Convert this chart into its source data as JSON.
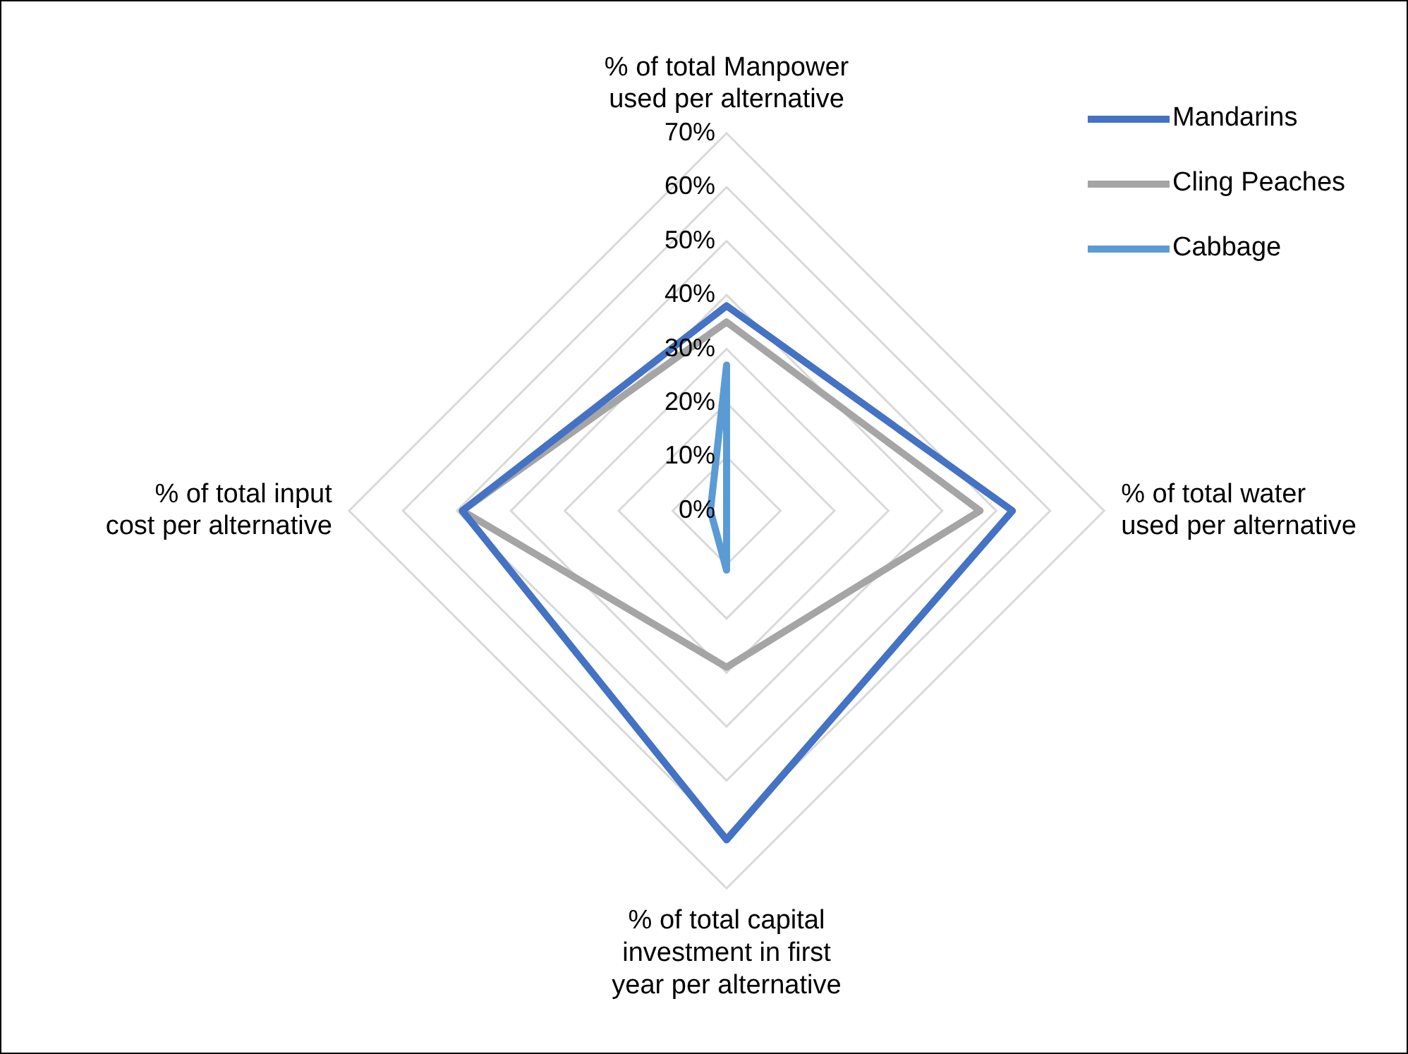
{
  "chart_data": {
    "type": "radar",
    "categories": [
      "% of total Manpower used per alternative",
      "% of total water used per alternative",
      "% of total capital investment in first year per alternative",
      "% of total input cost per alternative"
    ],
    "series": [
      {
        "name": "Mandarins",
        "color": "#4472c4",
        "values": [
          38,
          53,
          61,
          49
        ]
      },
      {
        "name": "Cling Peaches",
        "color": "#a5a5a5",
        "values": [
          35,
          47,
          29,
          49
        ]
      },
      {
        "name": "Cabbage",
        "color": "#5b9bd5",
        "values": [
          27,
          0,
          11,
          3
        ]
      }
    ],
    "ylim": [
      0,
      70
    ],
    "yticks": [
      {
        "value": 0,
        "label": "0%"
      },
      {
        "value": 10,
        "label": "10%"
      },
      {
        "value": 20,
        "label": "20%"
      },
      {
        "value": 30,
        "label": "30%"
      },
      {
        "value": 40,
        "label": "40%"
      },
      {
        "value": 50,
        "label": "50%"
      },
      {
        "value": 60,
        "label": "60%"
      },
      {
        "value": 70,
        "label": "70%"
      }
    ],
    "grid": true,
    "legend": "top right",
    "marker": "none",
    "line_style": "solid"
  }
}
